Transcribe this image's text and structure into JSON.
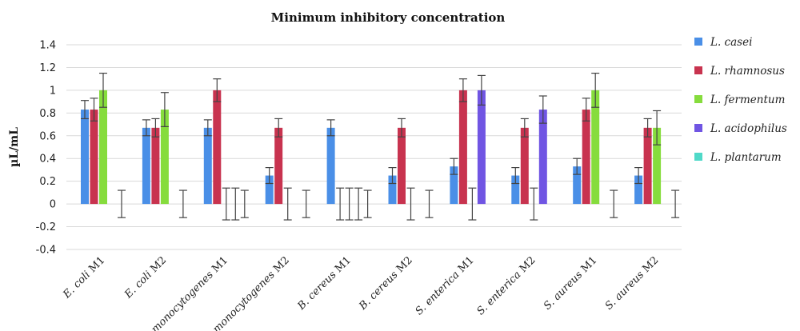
{
  "chart_data": {
    "type": "bar",
    "title": "Minimum inhibitory concentration",
    "xlabel": "",
    "ylabel": "µL/mL",
    "ylim": [
      -0.4,
      1.4
    ],
    "yticks": [
      "1.4",
      "1.2",
      "1",
      "0.8",
      "0.6",
      "0.4",
      "0.2",
      "0",
      "-0.2",
      "-0.4"
    ],
    "ytick_values": [
      1.4,
      1.2,
      1.0,
      0.8,
      0.6,
      0.4,
      0.2,
      0.0,
      -0.2,
      -0.4
    ],
    "grid": "horizontal",
    "legend_position": "right",
    "categories": [
      {
        "prefix": "E. coli",
        "suffix": " M1"
      },
      {
        "prefix": "E. coli",
        "suffix": " M2"
      },
      {
        "prefix": "L. monocytogenes",
        "suffix": " M1"
      },
      {
        "prefix": "L. monocytogenes",
        "suffix": " M2"
      },
      {
        "prefix": "B. cereus",
        "suffix": " M1"
      },
      {
        "prefix": "B. cereus",
        "suffix": " M2"
      },
      {
        "prefix": "S. enterica",
        "suffix": " M1"
      },
      {
        "prefix": "S. enterica",
        "suffix": " M2"
      },
      {
        "prefix": "S. aureus",
        "suffix": " M1"
      },
      {
        "prefix": "S. aureus",
        "suffix": " M2"
      }
    ],
    "series": [
      {
        "name": "L. casei",
        "color": "#4a8fe7",
        "values": [
          0.83,
          0.67,
          0.67,
          0.25,
          0.67,
          0.25,
          0.33,
          0.25,
          0.33,
          0.25
        ],
        "errors": [
          0.08,
          0.07,
          0.07,
          0.07,
          0.07,
          0.07,
          0.07,
          0.07,
          0.07,
          0.07
        ]
      },
      {
        "name": "L. rhamnosus",
        "color": "#c8334f",
        "values": [
          0.83,
          0.67,
          1.0,
          0.67,
          0.0,
          0.67,
          1.0,
          0.67,
          0.83,
          0.67
        ],
        "errors": [
          0.1,
          0.08,
          0.1,
          0.08,
          0.14,
          0.08,
          0.1,
          0.08,
          0.1,
          0.08
        ]
      },
      {
        "name": "L. fermentum",
        "color": "#86dc3d",
        "values": [
          1.0,
          0.83,
          0.0,
          0.0,
          0.0,
          0.0,
          0.0,
          0.0,
          1.0,
          0.67
        ],
        "errors": [
          0.15,
          0.15,
          0.14,
          0.14,
          0.14,
          0.14,
          0.14,
          0.14,
          0.15,
          0.15
        ]
      },
      {
        "name": "L. acidophilus",
        "color": "#7055e3",
        "values": [
          0.0,
          0.0,
          0.0,
          0.0,
          0.0,
          0.0,
          1.0,
          0.83,
          0.0,
          0.0
        ],
        "errors": [
          0.0,
          0.0,
          0.14,
          0.0,
          0.14,
          0.0,
          0.13,
          0.12,
          0.0,
          0.0
        ]
      },
      {
        "name": "L. plantarum",
        "color": "#4fd9c8",
        "values": [
          0.0,
          0.0,
          0.0,
          0.0,
          0.0,
          0.0,
          0.0,
          0.0,
          0.0,
          0.0
        ],
        "errors": [
          0.12,
          0.12,
          0.12,
          0.12,
          0.12,
          0.12,
          0.0,
          0.0,
          0.12,
          0.12
        ]
      }
    ]
  }
}
